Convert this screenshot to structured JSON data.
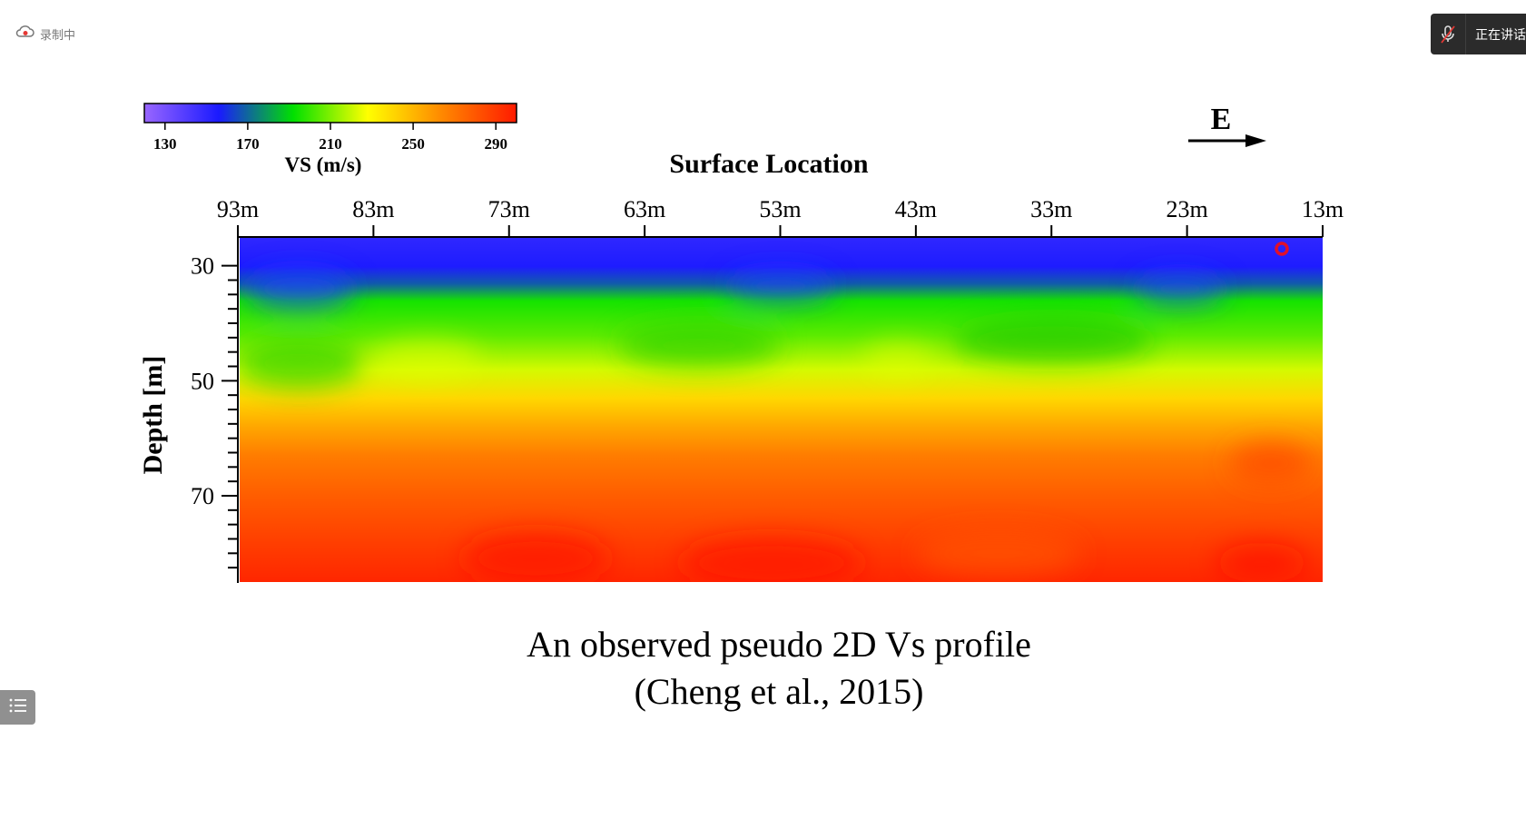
{
  "overlay": {
    "recording_label": "录制中",
    "speaking_label": "正在讲话",
    "icons": {
      "recording": "cloud-record-icon",
      "mic": "mic-muted-icon",
      "list": "list-icon"
    },
    "record_dot_color": "#e53935"
  },
  "slide": {
    "caption_line1": "An observed pseudo 2D Vs profile",
    "caption_line2": "(Cheng et al., 2015)",
    "direction_label": "E"
  },
  "chart_data": {
    "type": "heatmap",
    "title": "Surface Location",
    "xlabel": "Surface Location",
    "ylabel": "Depth [m]",
    "x_ticks": [
      "93m",
      "83m",
      "73m",
      "63m",
      "53m",
      "43m",
      "33m",
      "23m",
      "13m"
    ],
    "x_range": [
      93,
      13
    ],
    "y_ticks": [
      "30",
      "50",
      "70"
    ],
    "y_range": [
      25,
      85
    ],
    "colorbar": {
      "label": "VS (m/s)",
      "ticks": [
        "130",
        "170",
        "210",
        "250",
        "290"
      ],
      "range": [
        120,
        300
      ],
      "colors": [
        "#9966ff",
        "#1a1aff",
        "#00e000",
        "#ffff00",
        "#ff8800",
        "#ff1a00"
      ]
    },
    "depth_profile": [
      {
        "depth": 25,
        "vs": 150
      },
      {
        "depth": 30,
        "vs": 155
      },
      {
        "depth": 33,
        "vs": 168
      },
      {
        "depth": 36,
        "vs": 195
      },
      {
        "depth": 42,
        "vs": 205
      },
      {
        "depth": 48,
        "vs": 222
      },
      {
        "depth": 53,
        "vs": 240
      },
      {
        "depth": 58,
        "vs": 255
      },
      {
        "depth": 63,
        "vs": 268
      },
      {
        "depth": 70,
        "vs": 278
      },
      {
        "depth": 78,
        "vs": 288
      },
      {
        "depth": 85,
        "vs": 296
      }
    ]
  }
}
